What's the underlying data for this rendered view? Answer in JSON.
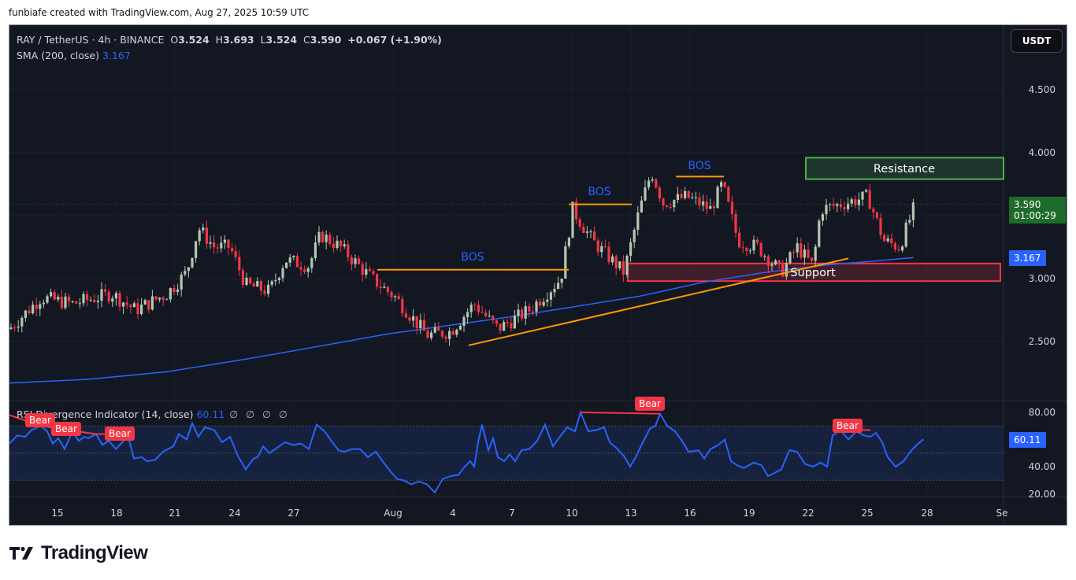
{
  "credit": "funbiafe created with TradingView.com, Aug 27, 2025 10:59 UTC",
  "legend": {
    "symbol": "RAY / TetherUS · 4h · BINANCE",
    "o_label": "O",
    "o": "3.524",
    "h_label": "H",
    "h": "3.693",
    "l_label": "L",
    "l": "3.524",
    "c_label": "C",
    "c": "3.590",
    "change": "+0.067 (+1.90%)",
    "sma_label": "SMA (200, close)",
    "sma_value": "3.167"
  },
  "rsi_legend": {
    "label": "RSI Divergence Indicator (14, close)",
    "value": "60.11",
    "nulls": "∅ ∅ ∅ ∅"
  },
  "currency_button": "USDT",
  "price_tags": {
    "last_price": "3.590",
    "countdown": "01:00:29",
    "sma": "3.167",
    "rsi": "60.11"
  },
  "annotations": {
    "bos": [
      "BOS",
      "BOS",
      "BOS"
    ],
    "resistance": "Resistance",
    "support": "Support",
    "bear": [
      "Bear",
      "Bear",
      "Bear",
      "Bear",
      "Bear"
    ]
  },
  "brand": "TradingView",
  "colors": {
    "background": "#131722",
    "bull": "#b2c8b0",
    "bear": "#f23645",
    "sma": "#2962ff",
    "rsi": "#2962ff",
    "trend": "#ff9800",
    "resistance": "#4caf50",
    "support": "#f23645"
  },
  "chart_data": [
    {
      "type": "candlestick",
      "title": "RAY / TetherUS · 4h · BINANCE",
      "ylabel": "USDT",
      "y_ticks": [
        "4.500",
        "4.000",
        "3.500",
        "3.000",
        "2.500"
      ],
      "y_tick_values": [
        4.5,
        4.0,
        3.5,
        3.0,
        2.5
      ],
      "ylim": [
        2.1,
        4.6
      ],
      "x_ticks": [
        "15",
        "18",
        "21",
        "24",
        "27",
        "Aug",
        "4",
        "7",
        "10",
        "13",
        "16",
        "19",
        "22",
        "25",
        "28",
        "Se"
      ],
      "last": {
        "open": 3.524,
        "high": 3.693,
        "low": 3.524,
        "close": 3.59,
        "change": 0.067,
        "change_pct": 1.9
      },
      "series": [
        {
          "name": "SMA (200, close)",
          "last": 3.167,
          "points": [
            [
              0,
              2.17
            ],
            [
              100,
              2.2
            ],
            [
              200,
              2.26
            ],
            [
              300,
              2.36
            ],
            [
              400,
              2.47
            ],
            [
              480,
              2.56
            ],
            [
              560,
              2.63
            ],
            [
              640,
              2.7
            ],
            [
              720,
              2.78
            ],
            [
              800,
              2.86
            ],
            [
              880,
              2.97
            ],
            [
              960,
              3.05
            ],
            [
              1040,
              3.11
            ],
            [
              1100,
              3.14
            ],
            [
              1148,
              3.167
            ]
          ]
        },
        {
          "name": "Close (approx)",
          "points": [
            [
              0,
              2.6
            ],
            [
              40,
              2.85
            ],
            [
              80,
              2.8
            ],
            [
              130,
              2.88
            ],
            [
              160,
              2.75
            ],
            [
              200,
              2.88
            ],
            [
              225,
              3.05
            ],
            [
              240,
              3.4
            ],
            [
              260,
              3.25
            ],
            [
              280,
              3.25
            ],
            [
              300,
              2.95
            ],
            [
              330,
              2.9
            ],
            [
              350,
              3.15
            ],
            [
              380,
              3.1
            ],
            [
              395,
              3.35
            ],
            [
              420,
              3.25
            ],
            [
              460,
              3.0
            ],
            [
              490,
              2.85
            ],
            [
              530,
              2.55
            ],
            [
              560,
              2.58
            ],
            [
              590,
              2.8
            ],
            [
              620,
              2.6
            ],
            [
              660,
              2.75
            ],
            [
              700,
              3.0
            ],
            [
              715,
              3.55
            ],
            [
              740,
              3.3
            ],
            [
              780,
              3.05
            ],
            [
              800,
              3.55
            ],
            [
              815,
              3.85
            ],
            [
              830,
              3.6
            ],
            [
              860,
              3.65
            ],
            [
              890,
              3.55
            ],
            [
              905,
              3.75
            ],
            [
              925,
              3.3
            ],
            [
              950,
              3.25
            ],
            [
              980,
              3.05
            ],
            [
              1000,
              3.25
            ],
            [
              1020,
              3.1
            ],
            [
              1030,
              3.55
            ],
            [
              1060,
              3.6
            ],
            [
              1090,
              3.65
            ],
            [
              1110,
              3.3
            ],
            [
              1130,
              3.25
            ],
            [
              1150,
              3.59
            ]
          ]
        }
      ],
      "annotations": [
        {
          "type": "hline",
          "label": "BOS",
          "price": 3.07,
          "x_range": [
            467,
            710
          ]
        },
        {
          "type": "hline",
          "label": "BOS",
          "price": 3.59,
          "x_range": [
            710,
            790
          ]
        },
        {
          "type": "hline",
          "label": "BOS",
          "price": 3.81,
          "x_range": [
            846,
            907
          ]
        },
        {
          "type": "trendline",
          "from": [
            583,
            2.47
          ],
          "to": [
            1065,
            3.16
          ]
        },
        {
          "type": "zone",
          "label": "Resistance",
          "top": 3.96,
          "bottom": 3.79
        },
        {
          "type": "zone",
          "label": "Support",
          "top": 3.12,
          "bottom": 2.98
        }
      ]
    },
    {
      "type": "line",
      "title": "RSI Divergence Indicator (14, close)",
      "y_ticks": [
        "80.00",
        "60.00",
        "40.00",
        "20.00"
      ],
      "y_tick_values": [
        80,
        60,
        40,
        20
      ],
      "band": [
        30,
        70
      ],
      "ylim": [
        15,
        85
      ],
      "last": 60.11,
      "series": [
        {
          "name": "RSI",
          "points": [
            [
              0,
              57
            ],
            [
              10,
              63
            ],
            [
              20,
              62
            ],
            [
              28,
              67
            ],
            [
              40,
              70
            ],
            [
              48,
              66
            ],
            [
              55,
              57
            ],
            [
              62,
              61
            ],
            [
              70,
              53
            ],
            [
              80,
              66
            ],
            [
              88,
              59
            ],
            [
              95,
              62
            ],
            [
              100,
              61
            ],
            [
              110,
              64
            ],
            [
              118,
              56
            ],
            [
              126,
              59
            ],
            [
              135,
              53
            ],
            [
              145,
              59
            ],
            [
              150,
              64
            ],
            [
              158,
              46
            ],
            [
              168,
              47
            ],
            [
              175,
              44
            ],
            [
              185,
              45
            ],
            [
              195,
              51
            ],
            [
              208,
              55
            ],
            [
              215,
              64
            ],
            [
              225,
              60
            ],
            [
              232,
              72
            ],
            [
              240,
              62
            ],
            [
              248,
              69
            ],
            [
              260,
              67
            ],
            [
              270,
              58
            ],
            [
              280,
              62
            ],
            [
              290,
              48
            ],
            [
              300,
              38
            ],
            [
              310,
              46
            ],
            [
              315,
              47
            ],
            [
              322,
              55
            ],
            [
              330,
              50
            ],
            [
              340,
              54
            ],
            [
              350,
              58
            ],
            [
              360,
              56
            ],
            [
              370,
              57
            ],
            [
              380,
              53
            ],
            [
              390,
              71
            ],
            [
              400,
              66
            ],
            [
              410,
              58
            ],
            [
              418,
              52
            ],
            [
              425,
              51
            ],
            [
              435,
              53
            ],
            [
              445,
              53
            ],
            [
              455,
              47
            ],
            [
              465,
              51
            ],
            [
              475,
              43
            ],
            [
              483,
              37
            ],
            [
              492,
              31
            ],
            [
              500,
              30
            ],
            [
              510,
              27
            ],
            [
              520,
              29
            ],
            [
              530,
              27
            ],
            [
              540,
              21
            ],
            [
              550,
              31
            ],
            [
              560,
              33
            ],
            [
              570,
              34
            ],
            [
              578,
              40
            ],
            [
              585,
              44
            ],
            [
              590,
              40
            ],
            [
              595,
              58
            ],
            [
              600,
              71
            ],
            [
              608,
              52
            ],
            [
              614,
              61
            ],
            [
              620,
              47
            ],
            [
              628,
              44
            ],
            [
              635,
              49
            ],
            [
              642,
              44
            ],
            [
              650,
              52
            ],
            [
              660,
              53
            ],
            [
              670,
              59
            ],
            [
              680,
              71
            ],
            [
              690,
              55
            ],
            [
              700,
              63
            ],
            [
              708,
              69
            ],
            [
              718,
              66
            ],
            [
              725,
              80
            ],
            [
              735,
              66
            ],
            [
              745,
              67
            ],
            [
              755,
              69
            ],
            [
              762,
              58
            ],
            [
              770,
              54
            ],
            [
              780,
              48
            ],
            [
              788,
              40
            ],
            [
              795,
              47
            ],
            [
              805,
              59
            ],
            [
              813,
              68
            ],
            [
              820,
              70
            ],
            [
              826,
              79
            ],
            [
              835,
              70
            ],
            [
              845,
              66
            ],
            [
              855,
              58
            ],
            [
              862,
              51
            ],
            [
              875,
              52
            ],
            [
              882,
              46
            ],
            [
              890,
              53
            ],
            [
              900,
              56
            ],
            [
              908,
              60
            ],
            [
              916,
              44
            ],
            [
              924,
              41
            ],
            [
              932,
              39
            ],
            [
              945,
              43
            ],
            [
              955,
              41
            ],
            [
              963,
              33
            ],
            [
              970,
              35
            ],
            [
              980,
              38
            ],
            [
              990,
              52
            ],
            [
              1000,
              51
            ],
            [
              1010,
              42
            ],
            [
              1020,
              40
            ],
            [
              1030,
              43
            ],
            [
              1038,
              40
            ],
            [
              1045,
              63
            ],
            [
              1055,
              67
            ],
            [
              1065,
              60
            ],
            [
              1075,
              66
            ],
            [
              1085,
              63
            ],
            [
              1093,
              62
            ],
            [
              1100,
              65
            ],
            [
              1108,
              58
            ],
            [
              1115,
              47
            ],
            [
              1125,
              40
            ],
            [
              1135,
              44
            ],
            [
              1145,
              52
            ],
            [
              1152,
              56
            ],
            [
              1160,
              60.11
            ]
          ]
        }
      ],
      "annotations": [
        {
          "type": "divergence",
          "label": "Bear",
          "from": [
            0,
            78
          ],
          "to": [
            40,
            70
          ]
        },
        {
          "type": "divergence",
          "label": "Bear",
          "from": [
            40,
            70
          ],
          "to": [
            110,
            64
          ]
        },
        {
          "type": "divergence",
          "label": "Bear",
          "from": [
            110,
            64
          ],
          "to": [
            150,
            64
          ]
        },
        {
          "type": "divergence",
          "label": "Bear",
          "from": [
            725,
            80
          ],
          "to": [
            826,
            79
          ]
        },
        {
          "type": "divergence",
          "label": "Bear",
          "from": [
            1055,
            67
          ],
          "to": [
            1093,
            67
          ]
        }
      ]
    }
  ]
}
